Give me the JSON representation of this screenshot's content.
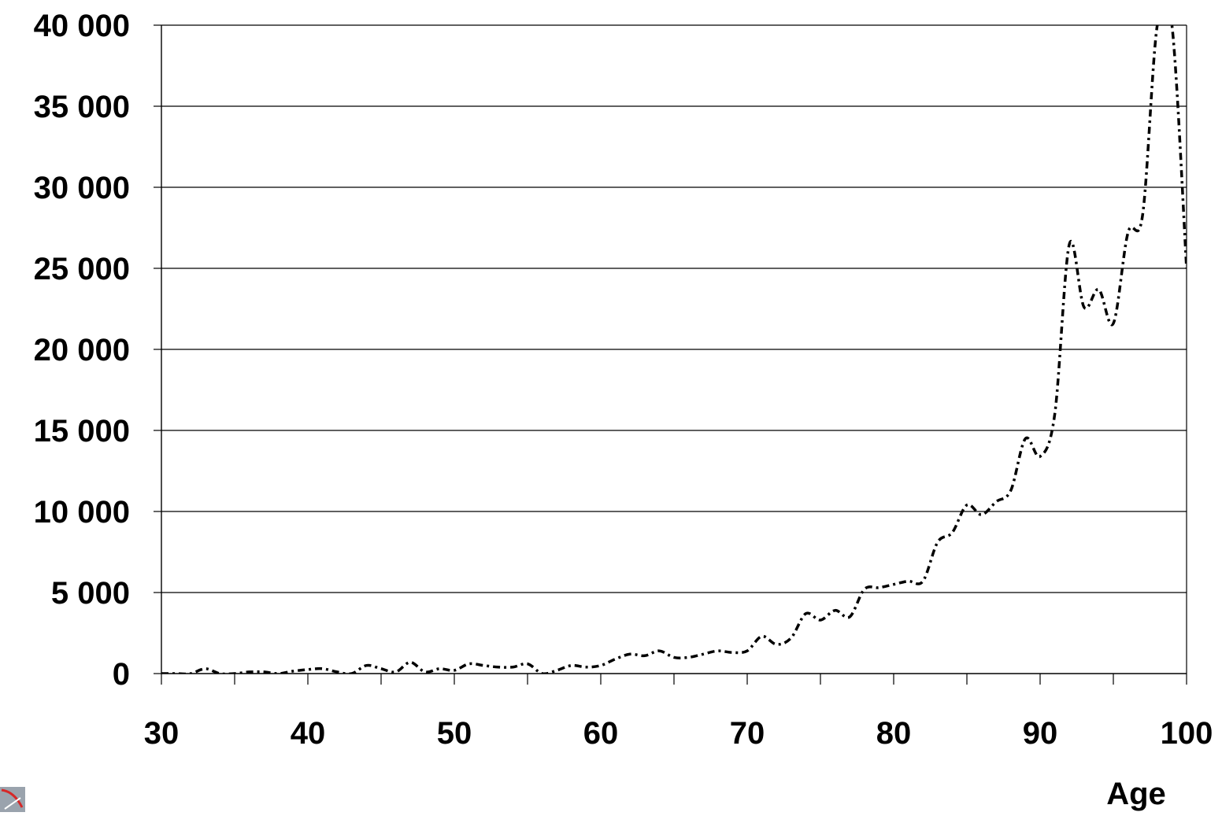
{
  "chart_data": {
    "type": "line",
    "title": "",
    "xlabel": "Age",
    "ylabel": "",
    "xlim": [
      30,
      100
    ],
    "ylim": [
      0,
      40000
    ],
    "x_ticks": [
      30,
      40,
      50,
      60,
      70,
      80,
      90,
      100
    ],
    "x_tick_labels": [
      "30",
      "40",
      "50",
      "60",
      "70",
      "80",
      "90",
      "100"
    ],
    "y_ticks": [
      0,
      5000,
      10000,
      15000,
      20000,
      25000,
      30000,
      35000,
      40000
    ],
    "y_tick_labels": [
      "0",
      "5 000",
      "10 000",
      "15 000",
      "20 000",
      "25 000",
      "30 000",
      "35 000",
      "40 000"
    ],
    "grid": "horizontal",
    "legend": "none",
    "line_style": "dash-dot",
    "line_color": "#000000",
    "series": [
      {
        "x": [
          30,
          31,
          32,
          33,
          34,
          35,
          36,
          37,
          38,
          39,
          40,
          41,
          42,
          43,
          44,
          45,
          46,
          47,
          48,
          49,
          50,
          51,
          52,
          53,
          54,
          55,
          56,
          57,
          58,
          59,
          60,
          61,
          62,
          63,
          64,
          65,
          66,
          67,
          68,
          69,
          70,
          71,
          72,
          73,
          74,
          75,
          76,
          77,
          78,
          79,
          80,
          81,
          82,
          83,
          84,
          85,
          86,
          87,
          88,
          89,
          90,
          91,
          92,
          93,
          94,
          95,
          96,
          97,
          98,
          99,
          100
        ],
        "values": [
          0,
          0,
          0,
          300,
          0,
          0,
          100,
          100,
          0,
          150,
          250,
          300,
          100,
          0,
          500,
          300,
          100,
          700,
          100,
          300,
          200,
          600,
          500,
          400,
          400,
          600,
          0,
          200,
          500,
          400,
          500,
          900,
          1200,
          1100,
          1400,
          1000,
          1000,
          1200,
          1400,
          1300,
          1400,
          2300,
          1800,
          2200,
          3700,
          3300,
          3900,
          3500,
          5200,
          5300,
          5500,
          5700,
          5700,
          8100,
          8700,
          10400,
          9800,
          10600,
          11300,
          14500,
          13400,
          16000,
          26500,
          22600,
          23700,
          21600,
          27200,
          28300,
          40000,
          40000,
          25000
        ]
      }
    ]
  },
  "branding": {
    "logo_icon": "corner-logo-icon"
  }
}
